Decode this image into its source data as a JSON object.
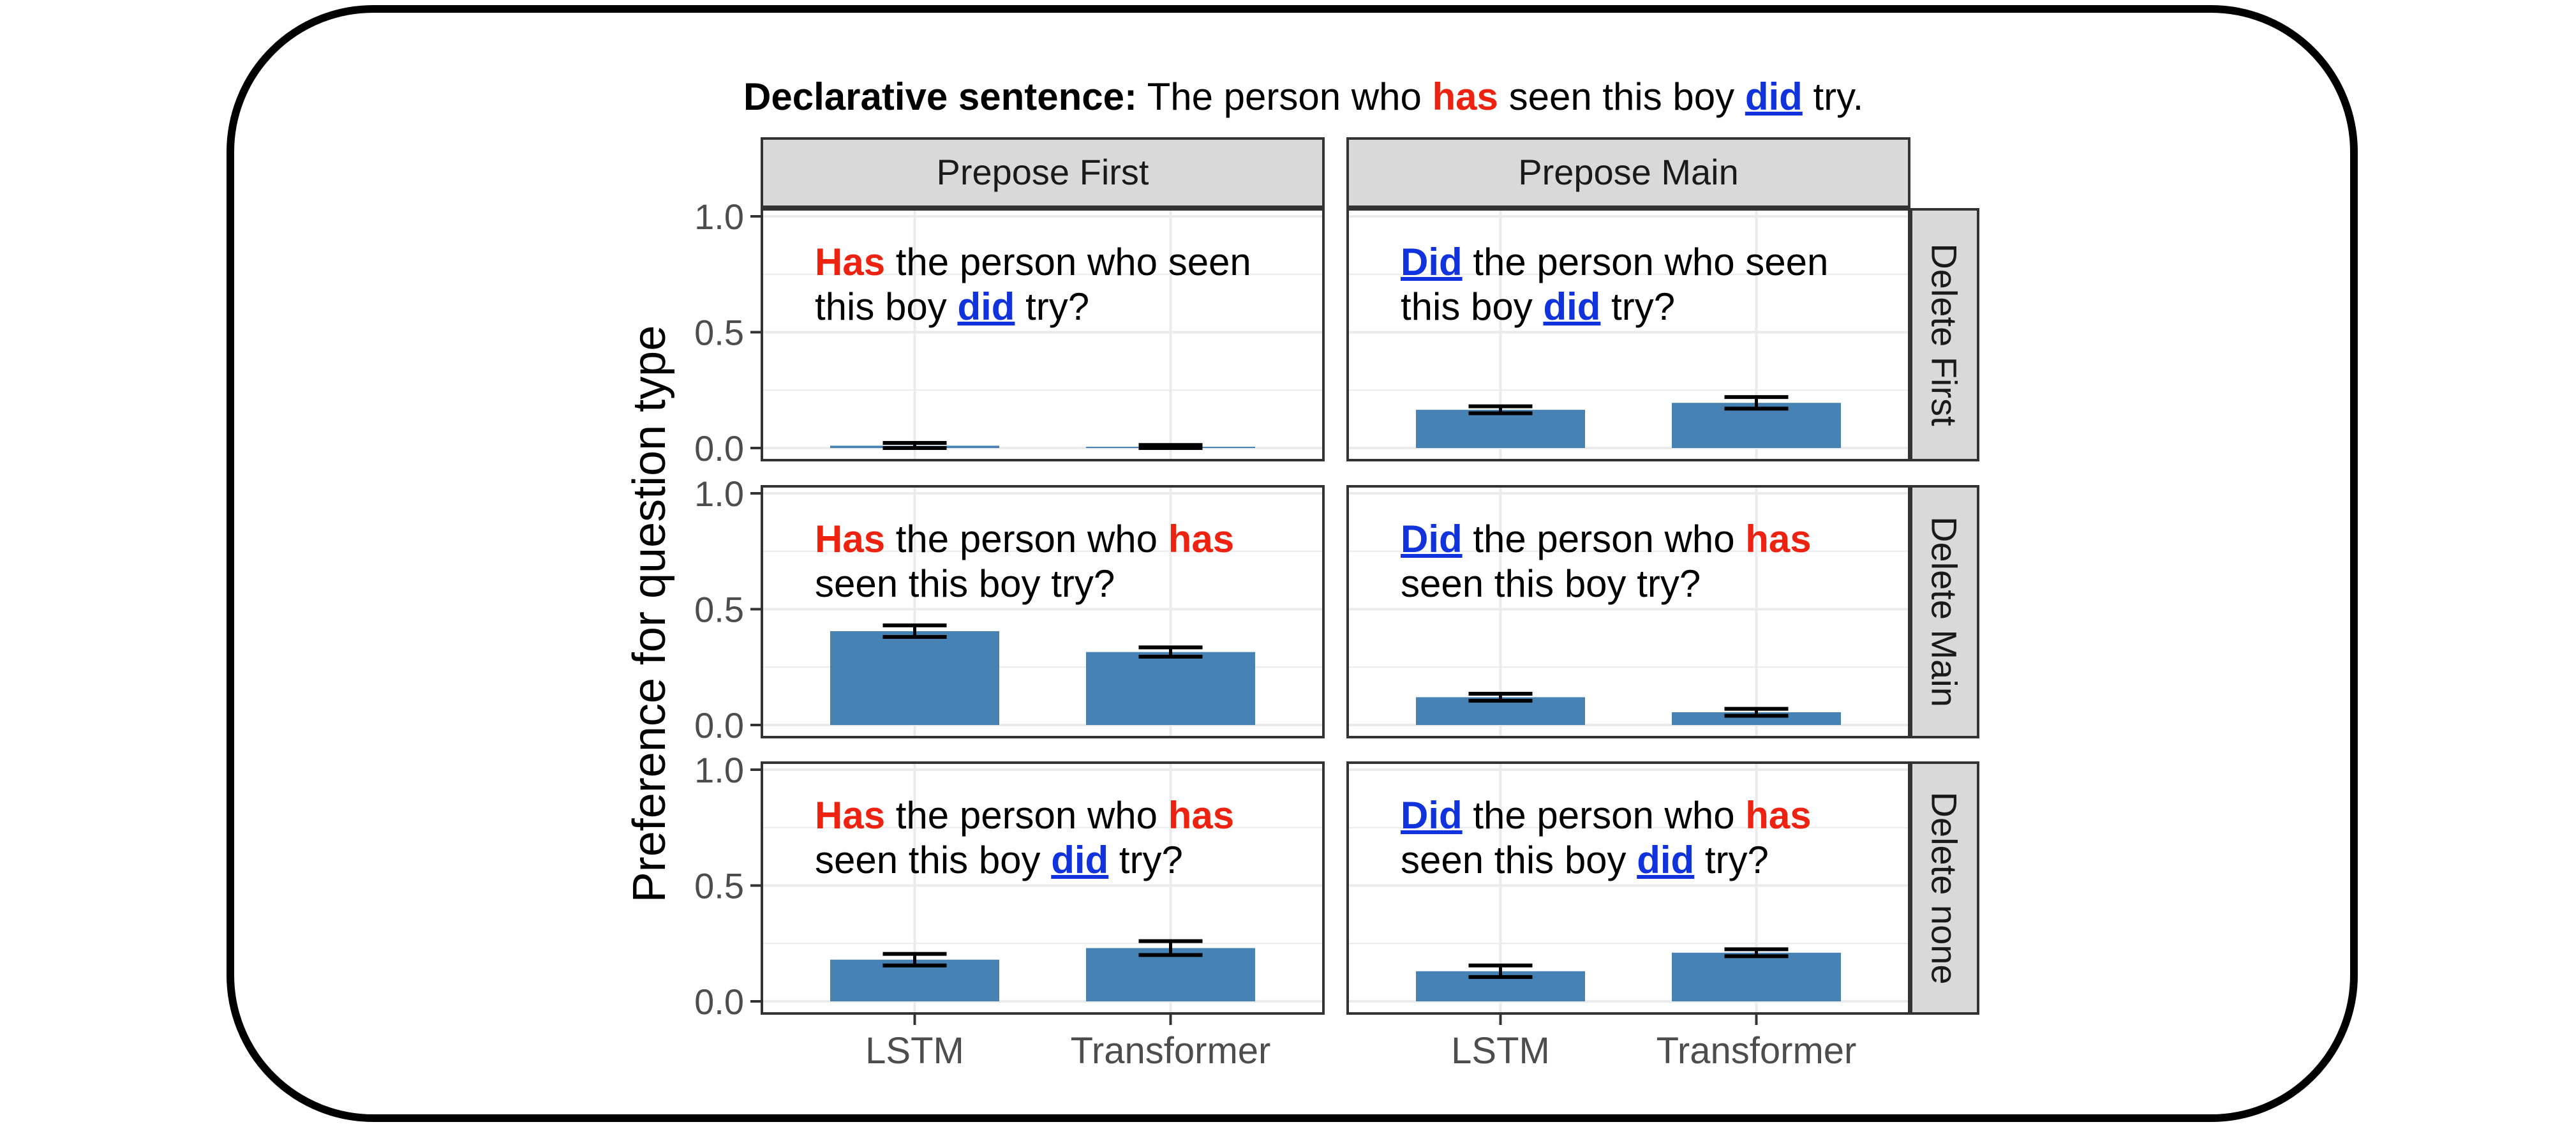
{
  "chart_data": {
    "type": "bar",
    "title": {
      "label": "Declarative sentence:",
      "segments": [
        {
          "text": " The person who ",
          "style": "plain"
        },
        {
          "text": "has",
          "style": "red"
        },
        {
          "text": " seen this boy ",
          "style": "plain"
        },
        {
          "text": "did",
          "style": "blue"
        },
        {
          "text": " try.",
          "style": "plain"
        }
      ]
    },
    "ylabel": "Preference for question type",
    "xlabel": "",
    "ylim": [
      0,
      1
    ],
    "yticks": [
      "0.0",
      "0.5",
      "1.0"
    ],
    "categories": [
      "LSTM",
      "Transformer"
    ],
    "column_facets": [
      "Prepose First",
      "Prepose Main"
    ],
    "row_facets": [
      "Delete First",
      "Delete Main",
      "Delete none"
    ],
    "grid": true,
    "colors": {
      "bar": "#4682b4",
      "red": "#ee2211",
      "blue": "#1133dd",
      "strip": "#d9d9d9",
      "grid": "#ebebeb",
      "frame": "#333333"
    },
    "panels": [
      {
        "row": "Delete First",
        "col": "Prepose First",
        "values": [
          0.01,
          0.005
        ],
        "error": [
          0.012,
          0.008
        ],
        "question": [
          [
            {
              "text": "Has",
              "style": "red"
            },
            {
              "text": " the person who seen",
              "style": "plain"
            }
          ],
          [
            {
              "text": "this boy ",
              "style": "plain"
            },
            {
              "text": "did",
              "style": "blue"
            },
            {
              "text": " try?",
              "style": "plain"
            }
          ]
        ]
      },
      {
        "row": "Delete First",
        "col": "Prepose Main",
        "values": [
          0.165,
          0.195
        ],
        "error": [
          0.015,
          0.025
        ],
        "question": [
          [
            {
              "text": "Did",
              "style": "blue"
            },
            {
              "text": " the person who seen",
              "style": "plain"
            }
          ],
          [
            {
              "text": "this boy ",
              "style": "plain"
            },
            {
              "text": "did",
              "style": "blue"
            },
            {
              "text": " try?",
              "style": "plain"
            }
          ]
        ]
      },
      {
        "row": "Delete Main",
        "col": "Prepose First",
        "values": [
          0.405,
          0.315
        ],
        "error": [
          0.025,
          0.02
        ],
        "question": [
          [
            {
              "text": "Has",
              "style": "red"
            },
            {
              "text": " the person who ",
              "style": "plain"
            },
            {
              "text": "has",
              "style": "red"
            }
          ],
          [
            {
              "text": "seen this boy try?",
              "style": "plain"
            }
          ]
        ]
      },
      {
        "row": "Delete Main",
        "col": "Prepose Main",
        "values": [
          0.12,
          0.055
        ],
        "error": [
          0.015,
          0.015
        ],
        "question": [
          [
            {
              "text": "Did",
              "style": "blue"
            },
            {
              "text": " the person who ",
              "style": "plain"
            },
            {
              "text": "has",
              "style": "red"
            }
          ],
          [
            {
              "text": "seen this boy try?",
              "style": "plain"
            }
          ]
        ]
      },
      {
        "row": "Delete none",
        "col": "Prepose First",
        "values": [
          0.18,
          0.23
        ],
        "error": [
          0.025,
          0.03
        ],
        "question": [
          [
            {
              "text": "Has",
              "style": "red"
            },
            {
              "text": " the person who ",
              "style": "plain"
            },
            {
              "text": "has",
              "style": "red"
            }
          ],
          [
            {
              "text": "seen this boy ",
              "style": "plain"
            },
            {
              "text": "did",
              "style": "blue"
            },
            {
              "text": " try?",
              "style": "plain"
            }
          ]
        ]
      },
      {
        "row": "Delete none",
        "col": "Prepose Main",
        "values": [
          0.13,
          0.21
        ],
        "error": [
          0.025,
          0.015
        ],
        "question": [
          [
            {
              "text": "Did",
              "style": "blue"
            },
            {
              "text": " the person who ",
              "style": "plain"
            },
            {
              "text": "has",
              "style": "red"
            }
          ],
          [
            {
              "text": "seen this boy ",
              "style": "plain"
            },
            {
              "text": "did",
              "style": "blue"
            },
            {
              "text": " try?",
              "style": "plain"
            }
          ]
        ]
      }
    ]
  }
}
